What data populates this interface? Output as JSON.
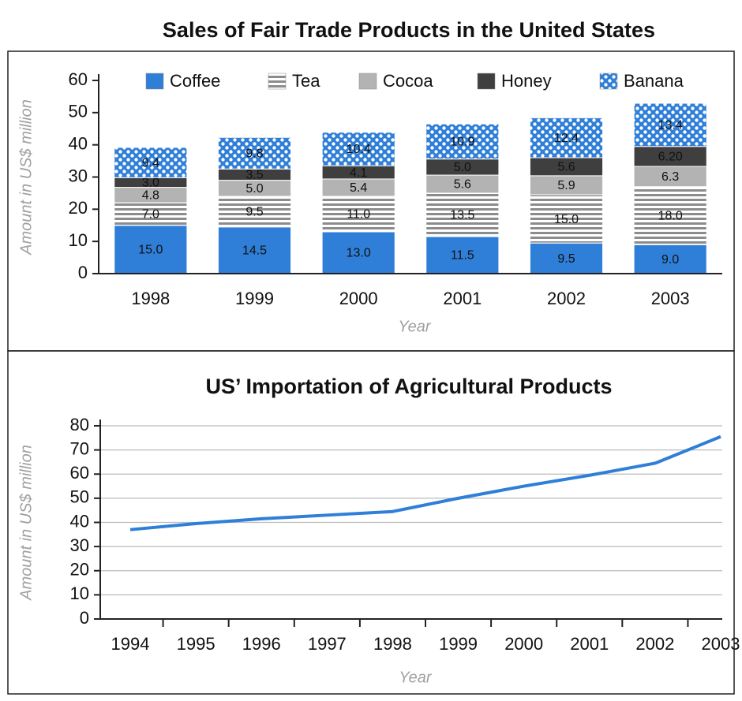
{
  "chart_data": [
    {
      "type": "stacked-bar",
      "title": "Sales of Fair Trade Products in the United States",
      "y_label": "Amount in US$ million",
      "x_label": "Year",
      "categories": [
        "1998",
        "1999",
        "2000",
        "2001",
        "2002",
        "2003"
      ],
      "series": [
        {
          "name": "Coffee",
          "color": "#2f7fd8",
          "pattern": "solid",
          "values": [
            15,
            14.5,
            13,
            11.5,
            9.5,
            9
          ],
          "value_labels": [
            "15.0",
            "14.5",
            "13.0",
            "11.5",
            "9.5",
            "9.0"
          ]
        },
        {
          "name": "Tea",
          "color": "#8c8c8c",
          "pattern": "stripes",
          "values": [
            7,
            9.5,
            11,
            13.5,
            15,
            18
          ],
          "value_labels": [
            "7.0",
            "9.5",
            "11.0",
            "13.5",
            "15.0",
            "18.0"
          ]
        },
        {
          "name": "Cocoa",
          "color": "#b3b3b3",
          "pattern": "solid",
          "values": [
            4.8,
            5,
            5.4,
            5.6,
            5.9,
            6.3
          ],
          "value_labels": [
            "4.8",
            "5.0",
            "5.4",
            "5.6",
            "5.9",
            "6.3"
          ]
        },
        {
          "name": "Honey",
          "color": "#3f3f3f",
          "pattern": "solid",
          "values": [
            3,
            3.5,
            4.1,
            5,
            5.6,
            6.2
          ],
          "value_labels": [
            "3.0",
            "3.5",
            "4.1",
            "5.0",
            "5.6",
            "6.20"
          ]
        },
        {
          "name": "Banana",
          "color": "#2f7fd8",
          "pattern": "dots",
          "values": [
            9.4,
            9.8,
            10.4,
            10.9,
            12.4,
            13.4
          ]
        }
      ],
      "ylim": [
        0,
        60
      ],
      "yticks": [
        0,
        10,
        20,
        30,
        40,
        50,
        60
      ],
      "grid": false,
      "legend": "top"
    },
    {
      "type": "line",
      "title": "US’ Importation of Agricultural Products",
      "y_label": "Amount in US$ million",
      "x_label": "Year",
      "categories": [
        "1994",
        "1995",
        "1996",
        "1997",
        "1998",
        "1999",
        "2000",
        "2001",
        "2002",
        "2003"
      ],
      "values": [
        37,
        39.5,
        41.5,
        43,
        44.5,
        50,
        55,
        59.5,
        64.5,
        75.5
      ],
      "color": "#2f7fd8",
      "ylim": [
        0,
        80
      ],
      "yticks": [
        0,
        10,
        20,
        30,
        40,
        50,
        60,
        70,
        80
      ],
      "grid": true
    }
  ]
}
